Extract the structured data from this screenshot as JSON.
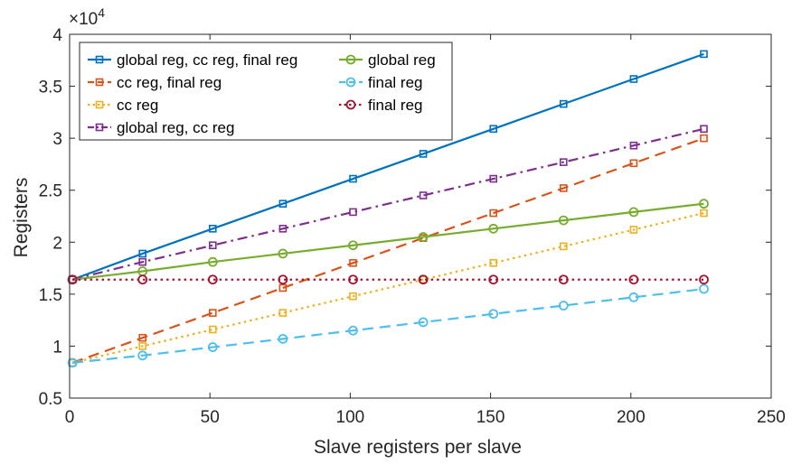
{
  "chart_data": {
    "type": "line",
    "xlabel": "Slave registers per slave",
    "ylabel": "Registers",
    "y_scale_label": "×10",
    "y_scale_exponent": "4",
    "xlim": [
      0,
      250
    ],
    "ylim": [
      0.5,
      4
    ],
    "x_ticks": [
      "0",
      "50",
      "100",
      "150",
      "200",
      "250"
    ],
    "y_ticks": [
      "0.5",
      "1",
      "1.5",
      "2",
      "2.5",
      "3",
      "3.5",
      "4"
    ],
    "x_tick_values": [
      0,
      50,
      100,
      150,
      200,
      250
    ],
    "y_tick_values": [
      0.5,
      1,
      1.5,
      2,
      2.5,
      3,
      3.5,
      4
    ],
    "grid": false,
    "legend_position": "top-left",
    "x": [
      1,
      26,
      51,
      76,
      101,
      126,
      151,
      176,
      201,
      226
    ],
    "series": [
      {
        "name": "global reg, cc reg, final reg",
        "color": "#0072BD",
        "dash": "solid",
        "marker": "square",
        "values": [
          1.64,
          1.89,
          2.13,
          2.37,
          2.61,
          2.85,
          3.09,
          3.33,
          3.57,
          3.81
        ]
      },
      {
        "name": "cc reg, final reg",
        "color": "#D95319",
        "dash": "dashed",
        "marker": "square",
        "values": [
          0.84,
          1.08,
          1.32,
          1.56,
          1.8,
          2.04,
          2.28,
          2.52,
          2.76,
          3.0
        ]
      },
      {
        "name": "cc reg",
        "color": "#EDB120",
        "dash": "dotted",
        "marker": "square",
        "values": [
          0.84,
          1.0,
          1.16,
          1.32,
          1.48,
          1.64,
          1.8,
          1.96,
          2.12,
          2.28
        ]
      },
      {
        "name": "global reg, cc reg",
        "color": "#7E2F8E",
        "dash": "dashdot",
        "marker": "square",
        "values": [
          1.64,
          1.81,
          1.97,
          2.13,
          2.29,
          2.45,
          2.61,
          2.77,
          2.93,
          3.09
        ]
      },
      {
        "name": "global reg",
        "color": "#77AC30",
        "dash": "solid",
        "marker": "circle",
        "values": [
          1.64,
          1.72,
          1.81,
          1.89,
          1.97,
          2.05,
          2.13,
          2.21,
          2.29,
          2.37
        ]
      },
      {
        "name": "final reg",
        "color": "#4DBEEE",
        "dash": "dashed",
        "marker": "circle",
        "values": [
          0.84,
          0.91,
          0.99,
          1.07,
          1.15,
          1.23,
          1.31,
          1.39,
          1.47,
          1.55
        ]
      },
      {
        "name": "final reg",
        "color": "#A2142F",
        "dash": "dotted",
        "marker": "circle",
        "values": [
          1.64,
          1.64,
          1.64,
          1.64,
          1.64,
          1.64,
          1.64,
          1.64,
          1.64,
          1.64
        ]
      }
    ]
  }
}
